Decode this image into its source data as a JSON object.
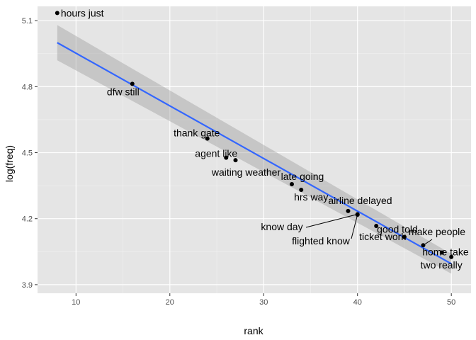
{
  "chart_data": {
    "type": "scatter",
    "xlabel": "rank",
    "ylabel": "log(freq)",
    "xlim": [
      5.9,
      52.1
    ],
    "ylim": [
      3.861,
      5.165
    ],
    "x_ticks": [
      10,
      20,
      30,
      40,
      50
    ],
    "y_ticks": [
      3.9,
      4.2,
      4.5,
      4.8,
      5.1
    ],
    "x_tick_labels": [
      "10",
      "20",
      "30",
      "40",
      "50"
    ],
    "y_tick_labels": [
      "3.9",
      "4.2",
      "4.5",
      "4.8",
      "5.1"
    ],
    "grid": true,
    "background": "#e5e5e5",
    "points": [
      {
        "x": 8,
        "y": 5.135,
        "label": "hours just"
      },
      {
        "x": 16,
        "y": 4.813,
        "label": "dfw still"
      },
      {
        "x": 24,
        "y": 4.564,
        "label": "thank gate"
      },
      {
        "x": 26,
        "y": 4.477,
        "label": "agent like"
      },
      {
        "x": 27,
        "y": 4.466,
        "label": "waiting weather"
      },
      {
        "x": 33,
        "y": 4.357,
        "label": "late going"
      },
      {
        "x": 34,
        "y": 4.331,
        "label": "hrs way"
      },
      {
        "x": 39,
        "y": 4.235,
        "label": "airline delayed"
      },
      {
        "x": 40,
        "y": 4.22,
        "label": "know day"
      },
      {
        "x": 40,
        "y": 4.218,
        "label": "flighted know"
      },
      {
        "x": 42,
        "y": 4.167,
        "label": "ticket work"
      },
      {
        "x": 45,
        "y": 4.117,
        "label": "good told"
      },
      {
        "x": 47,
        "y": 4.079,
        "label": "make people"
      },
      {
        "x": 49,
        "y": 4.046,
        "label": "home take"
      },
      {
        "x": 50,
        "y": 4.026,
        "label": "two really"
      }
    ],
    "fit": {
      "method": "linear",
      "x": [
        8,
        50
      ],
      "y": [
        5.0,
        3.995
      ],
      "ci_upper": [
        5.08,
        4.04
      ],
      "ci_lower": [
        4.92,
        3.95
      ],
      "line_color": "#3366ff",
      "band_color": "#999999"
    }
  }
}
